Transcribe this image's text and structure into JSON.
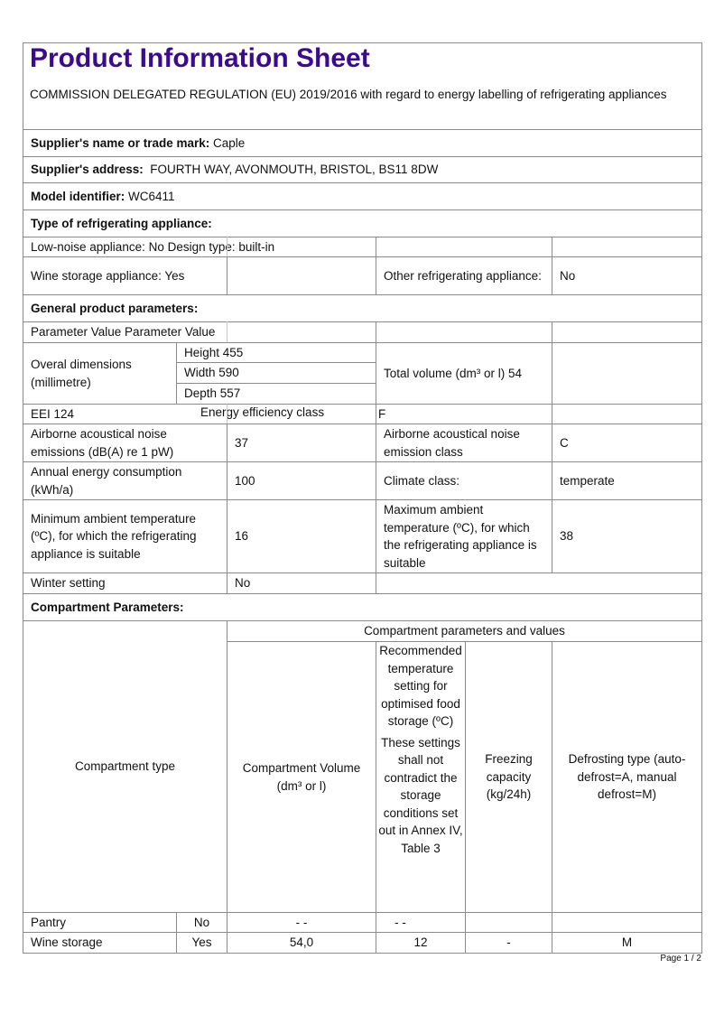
{
  "title": "Product Information Sheet",
  "subtitle": "COMMISSION DELEGATED REGULATION (EU) 2019/2016 with regard to energy labelling of refrigerating appliances",
  "title_color": "#3b0a8f",
  "supplier_name": {
    "label": "Supplier's name or trade mark:",
    "value": " Caple"
  },
  "supplier_address": {
    "label": "Supplier's address:",
    "value": "  FOURTH WAY, AVONMOUTH, BRISTOL, BS11 8DW"
  },
  "model": {
    "label": "Model identifier:",
    "value": " WC6411"
  },
  "type_heading": "Type of refrigerating appliance:",
  "low_noise": "Low-noise appliance: No Design type: built-in",
  "wine_storage_appliance": "Wine storage appliance: Yes",
  "other_appliance": {
    "label": "Other  refrigerating appliance:",
    "value": "No"
  },
  "general_heading": "General product parameters:",
  "param_header": "Parameter Value Parameter Value",
  "dimensions": {
    "label": "Overal dimensions (millimetre)",
    "height": "Height 455",
    "width": "Width 590",
    "depth": "Depth 557"
  },
  "total_volume": "Total volume (dm³ or l) 54",
  "eei": "EEI 124",
  "energy_class": {
    "label": "Energy efficiency class",
    "value": "F"
  },
  "noise": {
    "label": "Airborne acoustical noise emissions (dB(A) re 1 pW)",
    "value": "37",
    "class_label": "Airborne acoustical noise emission class",
    "class_value": "C"
  },
  "annual": {
    "label": "Annual energy consumption (kWh/a)",
    "value": "100",
    "climate_label": "Climate class:",
    "climate_value": "temperate"
  },
  "min_temp": {
    "label": "Minimum ambient temperature (ºC), for which the refrigerating appliance is suitable",
    "value": "16"
  },
  "max_temp": {
    "label": "Maximum ambient temperature (ºC), for which the refrigerating appliance is suitable",
    "value": "38"
  },
  "winter": {
    "label": "Winter setting",
    "value": "No"
  },
  "compartment_heading": "Compartment Parameters:",
  "compartment_table": {
    "type_header": "Compartment type",
    "group_header": "Compartment parameters and values",
    "volume_header": "Compartment Volume (dm³ or l)",
    "temp_header": "Recommended temperature setting for optimised food storage (ºC)",
    "temp_note": "These settings shall not contradict the storage conditions set out in Annex IV, Table 3",
    "freezing_header": "Freezing capacity (kg/24h)",
    "defrost_header": "Defrosting type (auto-defrost=A, manual defrost=M)",
    "rows": [
      {
        "type": "Pantry",
        "present": "No",
        "volume": "- -",
        "temp": "- -",
        "freezing": "",
        "defrost": ""
      },
      {
        "type": "Wine storage",
        "present": "Yes",
        "volume": "54,0",
        "temp": "12",
        "freezing": "-",
        "defrost": "M"
      }
    ]
  },
  "page": "Page 1 / 2"
}
